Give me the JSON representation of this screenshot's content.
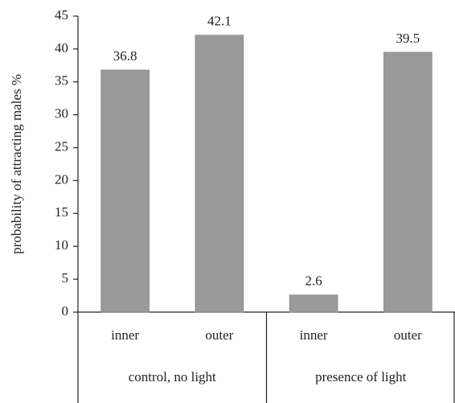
{
  "chart_data": {
    "type": "bar",
    "y_label": "probability of attracting males %",
    "categories": [
      "inner",
      "outer",
      "inner",
      "outer"
    ],
    "groups": [
      "control, no light",
      "presence of light"
    ],
    "values": [
      36.8,
      42.1,
      2.6,
      39.5
    ],
    "color": "#9a9a9a",
    "ylim": [
      0,
      45
    ],
    "yticks": [
      0,
      5,
      10,
      15,
      20,
      25,
      30,
      35,
      40,
      45
    ],
    "grid": false
  }
}
